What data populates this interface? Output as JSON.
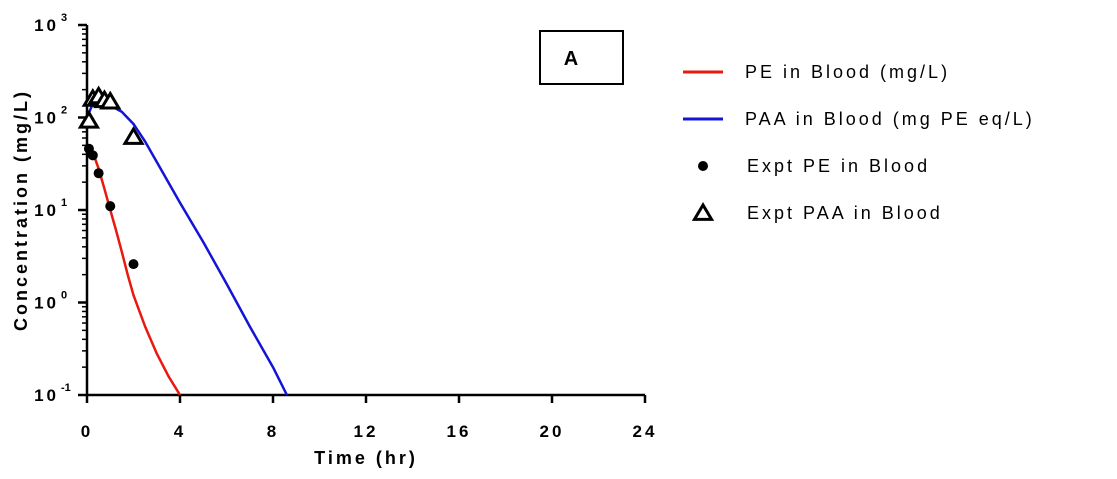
{
  "chart_data": {
    "type": "line",
    "panel_label": "A",
    "xlabel": "Time (hr)",
    "ylabel": "Concentration (mg/L)",
    "xlim": [
      0,
      24
    ],
    "ylim": [
      0.1,
      1000
    ],
    "y_scale": "log",
    "x_ticks": [
      0,
      4,
      8,
      12,
      16,
      20,
      24
    ],
    "x_tick_labels": [
      "0",
      "4",
      "8",
      "12",
      "16",
      "20",
      "24"
    ],
    "y_ticks": [
      {
        "value": 0.1,
        "base": "10",
        "exp": "-1"
      },
      {
        "value": 1,
        "base": "10",
        "exp": "0"
      },
      {
        "value": 10,
        "base": "10",
        "exp": "1"
      },
      {
        "value": 100,
        "base": "10",
        "exp": "2"
      },
      {
        "value": 1000,
        "base": "10",
        "exp": "3"
      }
    ],
    "legend_position": "right",
    "series": [
      {
        "name": "PE in Blood (mg/L)",
        "kind": "line",
        "color": "#e8190f",
        "x": [
          0,
          0.25,
          0.5,
          0.75,
          1.0,
          1.25,
          1.5,
          1.75,
          2.0,
          2.5,
          3.0,
          3.5,
          4.0
        ],
        "y": [
          50,
          42,
          28,
          17,
          10,
          6,
          3.5,
          2.0,
          1.2,
          0.55,
          0.28,
          0.16,
          0.1
        ]
      },
      {
        "name": "PAA in Blood (mg PE eq/L)",
        "kind": "line",
        "color": "#1414d8",
        "x": [
          0,
          0.2,
          0.5,
          1.0,
          1.5,
          2.0,
          2.5,
          3.0,
          4.0,
          5.0,
          6.0,
          7.0,
          8.0,
          8.6
        ],
        "y": [
          100,
          132,
          140,
          135,
          115,
          85,
          55,
          33,
          12,
          4.5,
          1.6,
          0.55,
          0.2,
          0.1
        ]
      },
      {
        "name": "Expt PE in Blood",
        "kind": "points",
        "marker": "circle",
        "color": "#000000",
        "x": [
          0.083,
          0.25,
          0.5,
          1.0,
          2.0
        ],
        "y": [
          46,
          39,
          25,
          11,
          2.6
        ]
      },
      {
        "name": "Expt PAA in Blood",
        "kind": "points",
        "marker": "triangle",
        "color": "#000000",
        "x": [
          0.083,
          0.25,
          0.5,
          0.75,
          1.0,
          2.0
        ],
        "y": [
          90,
          155,
          165,
          150,
          145,
          60
        ]
      }
    ]
  }
}
